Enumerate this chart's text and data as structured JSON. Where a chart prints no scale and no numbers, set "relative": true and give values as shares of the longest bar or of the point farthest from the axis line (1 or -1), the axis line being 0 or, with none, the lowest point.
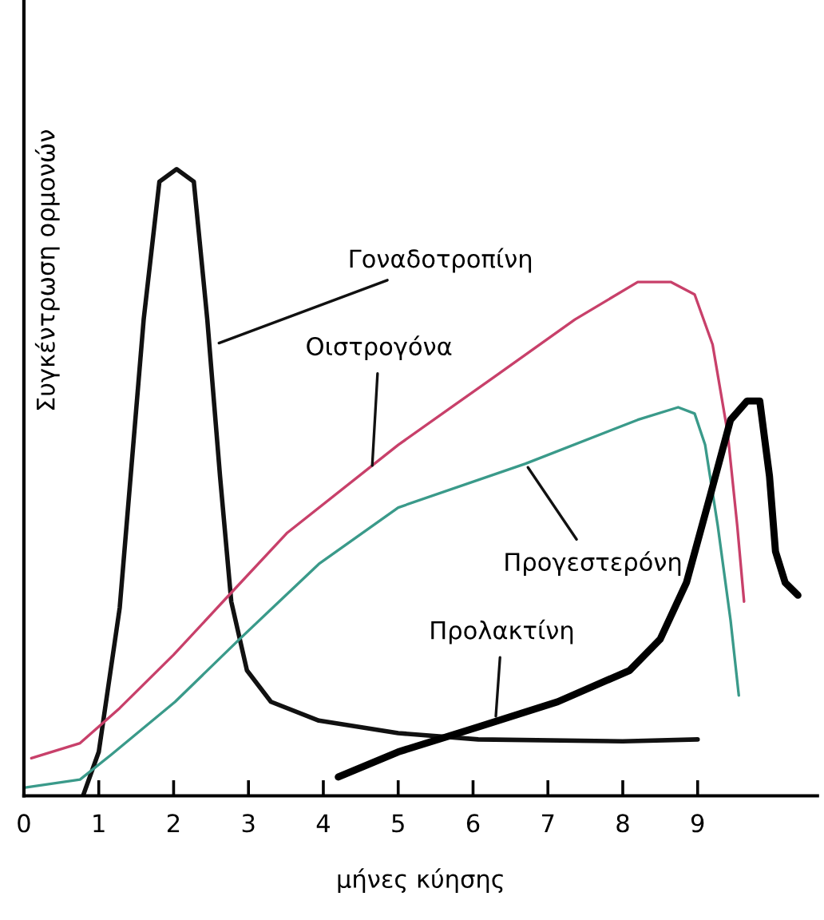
{
  "chart_data": {
    "type": "line",
    "relative": true,
    "xlabel": "μήνες κύησης",
    "ylabel": "Συγκέντρωση ορμονών",
    "xlim": [
      0,
      10.6
    ],
    "xticks": [
      0,
      1,
      2,
      3,
      4,
      5,
      6,
      7,
      8,
      9
    ],
    "grid": false,
    "marker": "none",
    "line_style": "solid",
    "series": [
      {
        "color": "#111111",
        "x": [
          0.79,
          1.0,
          1.28,
          1.6,
          1.81,
          2.04,
          2.27,
          2.45,
          2.62,
          2.77,
          2.98,
          3.3,
          3.94,
          5.0,
          6.07,
          8.0,
          9.0
        ],
        "values": [
          0,
          0.07,
          0.3,
          0.76,
          0.98,
          1.0,
          0.98,
          0.76,
          0.51,
          0.31,
          0.2,
          0.15,
          0.12,
          0.1,
          0.09,
          0.087,
          0.09
        ]
      },
      {
        "color": "#c8406a",
        "x": [
          0.1,
          0.75,
          1.28,
          2.0,
          2.66,
          3.52,
          5.0,
          6.3,
          7.36,
          8.2,
          8.64,
          8.96,
          9.2,
          9.4,
          9.53,
          9.62
        ],
        "values": [
          0.06,
          0.084,
          0.14,
          0.225,
          0.31,
          0.42,
          0.56,
          0.67,
          0.76,
          0.82,
          0.82,
          0.8,
          0.72,
          0.58,
          0.43,
          0.31
        ]
      },
      {
        "color": "#3a9a8a",
        "x": [
          0.0,
          0.75,
          1.17,
          2.02,
          2.88,
          3.94,
          5.0,
          6.7,
          8.2,
          8.74,
          8.96,
          9.1,
          9.27,
          9.44,
          9.55
        ],
        "values": [
          0.013,
          0.026,
          0.066,
          0.15,
          0.25,
          0.37,
          0.46,
          0.53,
          0.6,
          0.62,
          0.61,
          0.56,
          0.43,
          0.28,
          0.16
        ]
      },
      {
        "color": "#000000",
        "x": [
          4.2,
          5.0,
          6.07,
          7.13,
          8.09,
          8.5,
          8.85,
          9.17,
          9.44,
          9.66,
          9.83,
          9.96,
          10.04,
          10.17,
          10.34
        ],
        "values": [
          0.03,
          0.07,
          0.11,
          0.15,
          0.2,
          0.25,
          0.34,
          0.48,
          0.6,
          0.63,
          0.63,
          0.51,
          0.39,
          0.34,
          0.32
        ]
      }
    ],
    "annotations": [
      {
        "text": "Γοναδοτροπίνη",
        "x": 2.55,
        "y": 0.72
      },
      {
        "text": "Οιστρογόνα",
        "x": 4.65,
        "y": 0.52
      },
      {
        "text": "Προγεστερόνη",
        "x": 6.7,
        "y": 0.53
      },
      {
        "text": "Προλακτίνη",
        "x": 6.3,
        "y": 0.12
      }
    ]
  }
}
